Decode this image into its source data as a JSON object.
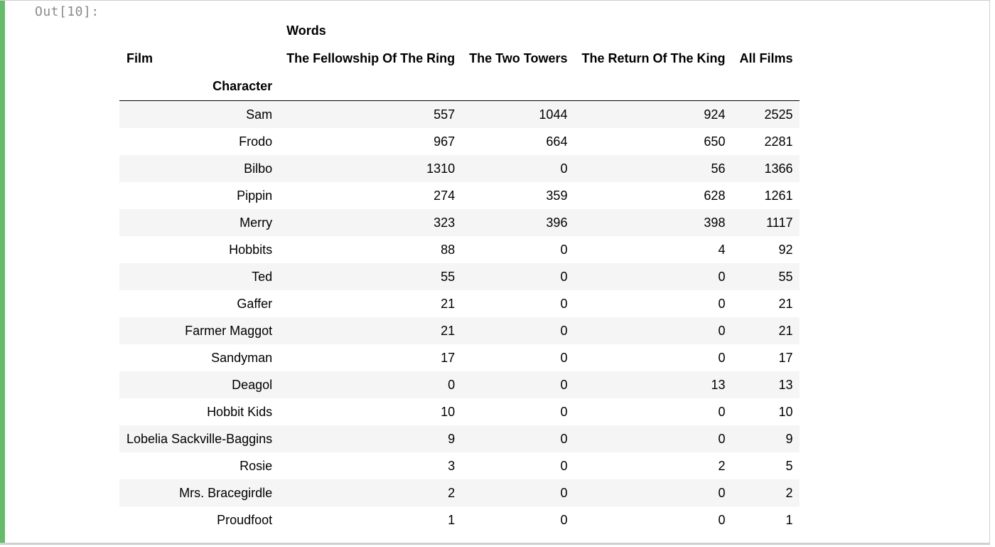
{
  "prompt": "Out[10]:",
  "table": {
    "level0_header": "Words",
    "columns_name": "Film",
    "columns": [
      "The Fellowship Of The Ring",
      "The Two Towers",
      "The Return Of The King",
      "All Films"
    ],
    "index_name": "Character",
    "rows": [
      {
        "character": "Sam",
        "values": [
          "557",
          "1044",
          "924",
          "2525"
        ]
      },
      {
        "character": "Frodo",
        "values": [
          "967",
          "664",
          "650",
          "2281"
        ]
      },
      {
        "character": "Bilbo",
        "values": [
          "1310",
          "0",
          "56",
          "1366"
        ]
      },
      {
        "character": "Pippin",
        "values": [
          "274",
          "359",
          "628",
          "1261"
        ]
      },
      {
        "character": "Merry",
        "values": [
          "323",
          "396",
          "398",
          "1117"
        ]
      },
      {
        "character": "Hobbits",
        "values": [
          "88",
          "0",
          "4",
          "92"
        ]
      },
      {
        "character": "Ted",
        "values": [
          "55",
          "0",
          "0",
          "55"
        ]
      },
      {
        "character": "Gaffer",
        "values": [
          "21",
          "0",
          "0",
          "21"
        ]
      },
      {
        "character": "Farmer Maggot",
        "values": [
          "21",
          "0",
          "0",
          "21"
        ]
      },
      {
        "character": "Sandyman",
        "values": [
          "17",
          "0",
          "0",
          "17"
        ]
      },
      {
        "character": "Deagol",
        "values": [
          "0",
          "0",
          "13",
          "13"
        ]
      },
      {
        "character": "Hobbit Kids",
        "values": [
          "10",
          "0",
          "0",
          "10"
        ]
      },
      {
        "character": "Lobelia Sackville-Baggins",
        "values": [
          "9",
          "0",
          "0",
          "9"
        ]
      },
      {
        "character": "Rosie",
        "values": [
          "3",
          "0",
          "2",
          "5"
        ]
      },
      {
        "character": "Mrs. Bracegirdle",
        "values": [
          "2",
          "0",
          "0",
          "2"
        ]
      },
      {
        "character": "Proudfoot",
        "values": [
          "1",
          "0",
          "0",
          "1"
        ]
      }
    ]
  },
  "colors": {
    "accent": "#66bb6a",
    "prompt": "#8a8a8a",
    "row_stripe": "#f5f5f5"
  }
}
